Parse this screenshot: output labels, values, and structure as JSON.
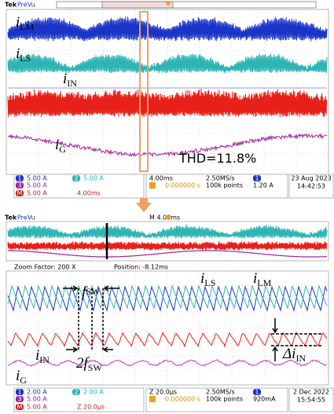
{
  "top": {
    "brand": "Tek",
    "mode": "PreVu",
    "labels": {
      "lm": {
        "symbol": "i",
        "subscript": "LM"
      },
      "ls": {
        "symbol": "i",
        "subscript": "LS"
      },
      "in": {
        "symbol": "i",
        "subscript": "IN"
      },
      "g": {
        "symbol": "i",
        "subscript": "G"
      }
    },
    "thd": "THD=11.8%",
    "status": {
      "ch1": {
        "num": "1",
        "scale": "5.00 A"
      },
      "ch2": {
        "num": "2",
        "scale": "5.00 A"
      },
      "ch3": {
        "num": "3",
        "scale": "5.00 A"
      },
      "math": {
        "num": "M",
        "scale": "5.00 A",
        "time": "4.00ms"
      },
      "timebase": "4.00ms",
      "rate": "2.50MS/s",
      "points": "100k points",
      "trigger_pos": "0.000000 s",
      "trigger_ch": "1",
      "trigger_level": "1.20 A",
      "date": "23 Aug 2023",
      "time": "14:42:53"
    }
  },
  "bottom": {
    "brand": "Tek",
    "mode": "PreVu",
    "overview_time": "M 4.00ms",
    "zoom": "Zoom Factor: 200 X",
    "position": "Position: -8.12ms",
    "labels": {
      "fsw": {
        "symbol": "f",
        "subscript": "SW"
      },
      "fsw2": {
        "symbol": "2f",
        "subscript": "SW"
      },
      "ls": {
        "symbol": "i",
        "subscript": "LS"
      },
      "lm": {
        "symbol": "i",
        "subscript": "LM"
      },
      "in": {
        "symbol": "i",
        "subscript": "IN"
      },
      "din": {
        "symbol": "Δi",
        "subscript": "IN"
      },
      "g": {
        "symbol": "i",
        "subscript": "G"
      }
    },
    "status": {
      "ch1": {
        "num": "1",
        "scale": "2.00 A"
      },
      "ch2": {
        "num": "2",
        "scale": "2.00 A"
      },
      "ch3": {
        "num": "3",
        "scale": "5.00 A"
      },
      "math": {
        "num": "M",
        "scale": "5.00 A",
        "time": "Z 20.0µs"
      },
      "timebase": "Z 20.0µs",
      "rate": "2.50MS/s",
      "points": "100k points",
      "trigger_pos": "0.000000 s",
      "trigger_ch": "1",
      "trigger_level": "920mA",
      "date": "2 Dec  2022",
      "time": "15:54:55"
    }
  }
}
